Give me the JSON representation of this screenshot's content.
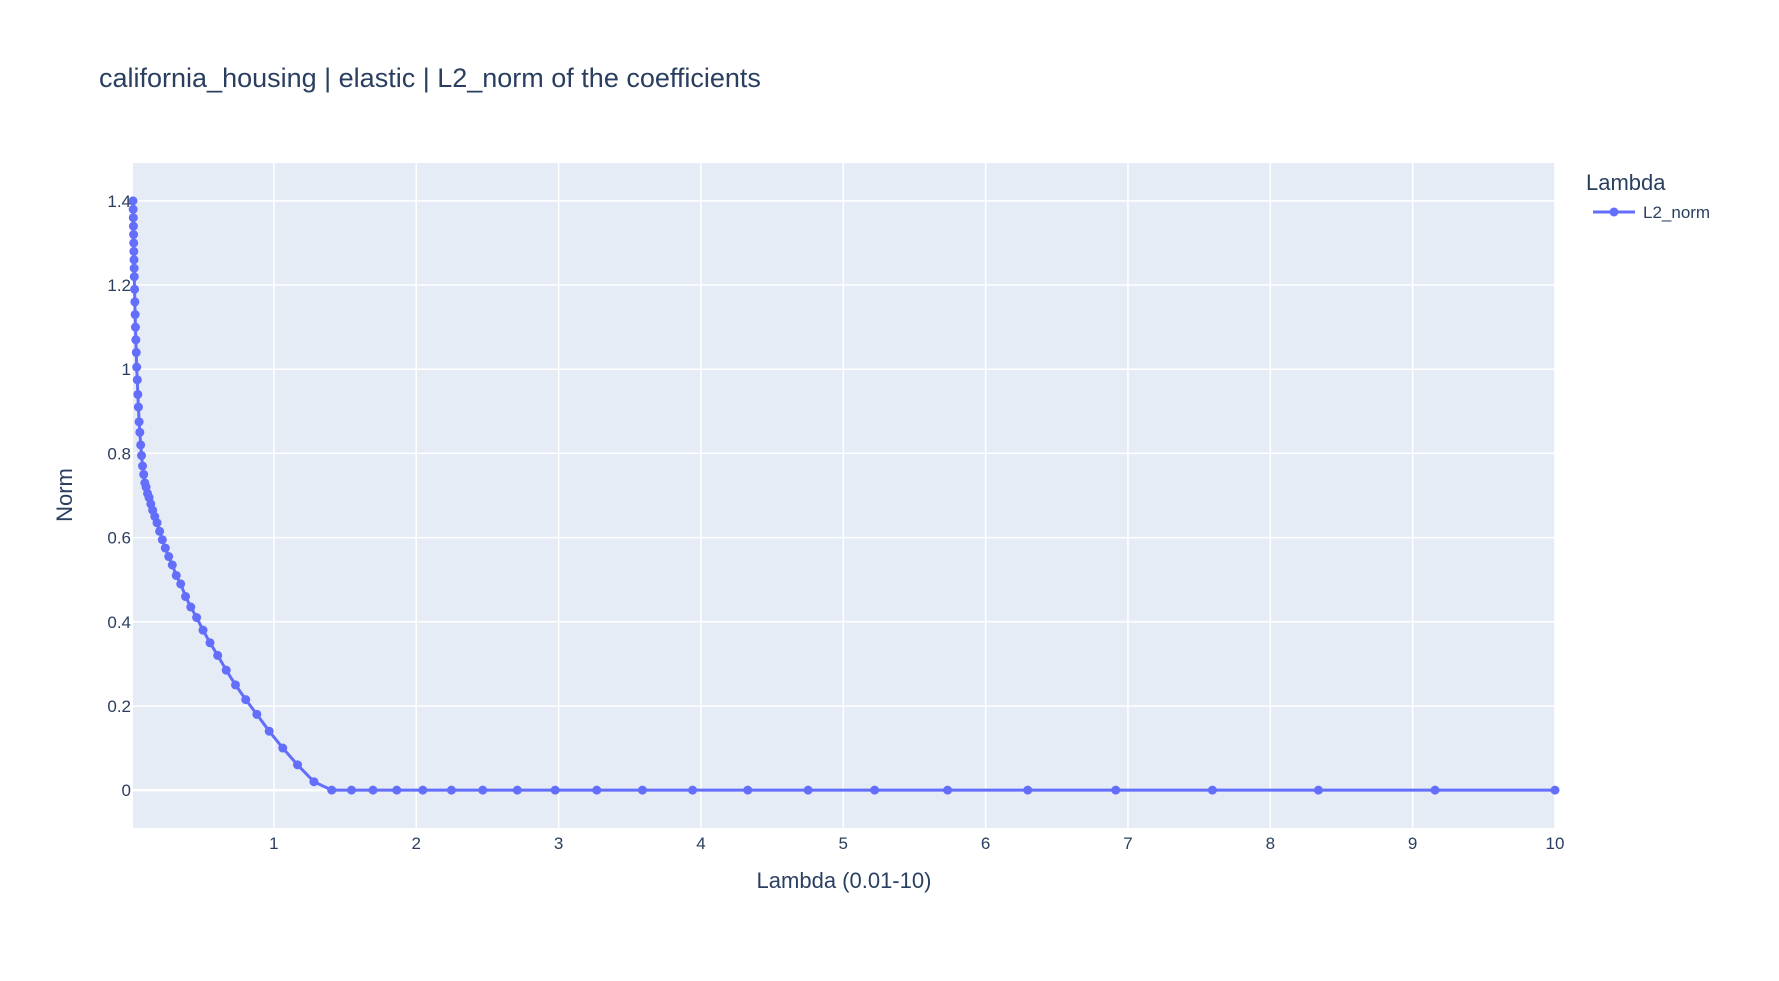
{
  "chart_data": {
    "type": "line",
    "title": "california_housing | elastic | L2_norm of the coefficients",
    "xlabel": "Lambda (0.01-10)",
    "ylabel": "Norm",
    "xlim": [
      0.01,
      10
    ],
    "ylim": [
      -0.09,
      1.49
    ],
    "xticks": [
      1,
      2,
      3,
      4,
      5,
      6,
      7,
      8,
      9,
      10
    ],
    "xtick_labels": [
      "1",
      "2",
      "3",
      "4",
      "5",
      "6",
      "7",
      "8",
      "9",
      "10"
    ],
    "yticks": [
      0,
      0.2,
      0.4,
      0.6,
      0.8,
      1,
      1.2,
      1.4
    ],
    "ytick_labels": [
      "0",
      "0.2",
      "0.4",
      "0.6",
      "0.8",
      "1",
      "1.2",
      "1.4"
    ],
    "grid": true,
    "legend": {
      "title": "Lambda",
      "position": "top-right"
    },
    "series": [
      {
        "name": "L2_norm",
        "color": "#636efa",
        "mode": "lines+markers",
        "x": [
          0.01,
          0.011,
          0.012,
          0.013,
          0.014,
          0.015,
          0.016,
          0.017,
          0.018,
          0.019,
          0.021,
          0.023,
          0.025,
          0.027,
          0.03,
          0.033,
          0.036,
          0.04,
          0.044,
          0.048,
          0.053,
          0.058,
          0.064,
          0.07,
          0.077,
          0.085,
          0.093,
          0.102,
          0.112,
          0.123,
          0.135,
          0.148,
          0.163,
          0.179,
          0.197,
          0.216,
          0.237,
          0.261,
          0.286,
          0.314,
          0.345,
          0.379,
          0.416,
          0.457,
          0.502,
          0.551,
          0.605,
          0.665,
          0.73,
          0.802,
          0.88,
          0.967,
          1.062,
          1.166,
          1.281,
          1.406,
          1.545,
          1.696,
          1.863,
          2.046,
          2.247,
          2.467,
          2.71,
          2.976,
          3.268,
          3.589,
          3.941,
          4.329,
          4.753,
          5.22,
          5.733,
          6.296,
          6.914,
          7.593,
          8.338,
          9.157,
          10.0
        ],
        "y": [
          1.4,
          1.38,
          1.36,
          1.34,
          1.32,
          1.3,
          1.28,
          1.26,
          1.24,
          1.22,
          1.19,
          1.16,
          1.13,
          1.1,
          1.07,
          1.04,
          1.005,
          0.975,
          0.94,
          0.91,
          0.875,
          0.85,
          0.82,
          0.795,
          0.77,
          0.75,
          0.73,
          0.72,
          0.705,
          0.695,
          0.68,
          0.665,
          0.65,
          0.635,
          0.615,
          0.595,
          0.575,
          0.555,
          0.535,
          0.51,
          0.49,
          0.46,
          0.435,
          0.41,
          0.38,
          0.35,
          0.32,
          0.285,
          0.25,
          0.215,
          0.18,
          0.14,
          0.1,
          0.06,
          0.02,
          0.0,
          0.0,
          0.0,
          0.0,
          0.0,
          0.0,
          0.0,
          0.0,
          0.0,
          0.0,
          0.0,
          0.0,
          0.0,
          0.0,
          0.0,
          0.0,
          0.0,
          0.0,
          0.0,
          0.0,
          0.0,
          0.0
        ]
      }
    ]
  }
}
